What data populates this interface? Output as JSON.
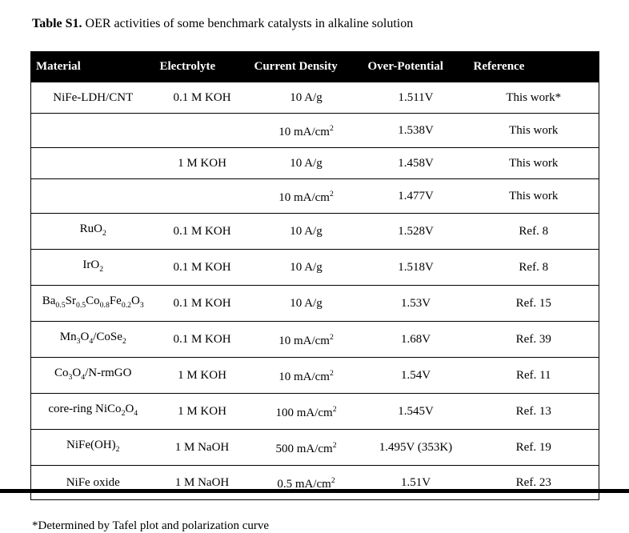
{
  "title": {
    "label": "Table S1.",
    "text": "OER activities of some benchmark catalysts in alkaline solution"
  },
  "table": {
    "columns": [
      "Material",
      "Electrolyte",
      "Current Density",
      "Over-Potential",
      "Reference"
    ],
    "rows": [
      {
        "material": "NiFe-LDH/CNT",
        "electrolyte": "0.1 M KOH",
        "current_density": "10 A/g",
        "over_potential": "1.511V",
        "reference": "This work*"
      },
      {
        "material": "",
        "electrolyte": "",
        "current_density": "10 mA/cm^2^",
        "over_potential": "1.538V",
        "reference": "This work"
      },
      {
        "material": "",
        "electrolyte": "1 M KOH",
        "current_density": "10 A/g",
        "over_potential": "1.458V",
        "reference": "This work"
      },
      {
        "material": "",
        "electrolyte": "",
        "current_density": "10 mA/cm^2^",
        "over_potential": "1.477V",
        "reference": "This work"
      },
      {
        "material": "RuO~2~",
        "electrolyte": "0.1 M KOH",
        "current_density": "10 A/g",
        "over_potential": "1.528V",
        "reference": "Ref. 8"
      },
      {
        "material": "IrO~2~",
        "electrolyte": "0.1 M KOH",
        "current_density": "10 A/g",
        "over_potential": "1.518V",
        "reference": "Ref. 8"
      },
      {
        "material": "Ba~0.5~Sr~0.5~Co~0.8~Fe~0.2~O~3~",
        "electrolyte": "0.1 M KOH",
        "current_density": "10 A/g",
        "over_potential": "1.53V",
        "reference": "Ref. 15"
      },
      {
        "material": "Mn~3~O~4~/CoSe~2~",
        "electrolyte": "0.1 M KOH",
        "current_density": "10 mA/cm^2^",
        "over_potential": "1.68V",
        "reference": "Ref. 39"
      },
      {
        "material": "Co~3~O~4~/N-rmGO",
        "electrolyte": "1 M KOH",
        "current_density": "10 mA/cm^2^",
        "over_potential": "1.54V",
        "reference": "Ref. 11"
      },
      {
        "material": "core-ring NiCo~2~O~4~",
        "electrolyte": "1 M KOH",
        "current_density": "100 mA/cm^2^",
        "over_potential": "1.545V",
        "reference": "Ref. 13"
      },
      {
        "material": "NiFe(OH)~2~",
        "electrolyte": "1 M NaOH",
        "current_density": "500 mA/cm^2^",
        "over_potential": "1.495V (353K)",
        "reference": "Ref. 19"
      },
      {
        "material": "NiFe oxide",
        "electrolyte": "1 M NaOH",
        "current_density": "0.5 mA/cm^2^",
        "over_potential": "1.51V",
        "reference": "Ref. 23"
      }
    ]
  },
  "footnote": "*Determined by Tafel plot and polarization curve",
  "colors": {
    "header_bg": "#000000",
    "header_text": "#ffffff",
    "border": "#000000",
    "page_bg": "#ffffff"
  }
}
